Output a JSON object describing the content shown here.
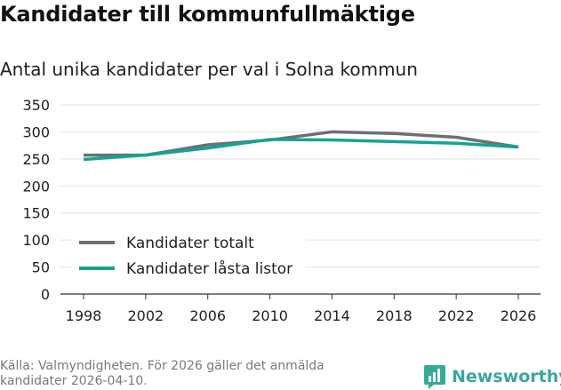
{
  "header": {
    "title": "Kandidater till kommunfullmäktige",
    "subtitle": "Antal unika kandidater per val i Solna kommun"
  },
  "footer": {
    "source_line1": "Källa: Valmyndigheten. För 2026 gäller det anmälda",
    "source_line2": "kandidater 2026-04-10.",
    "brand": "Newsworthy"
  },
  "colors": {
    "series_total": "#6e6e73",
    "series_locked": "#12a594",
    "brand": "#3aa89a",
    "grid": "#e3e3e3"
  },
  "chart_data": {
    "type": "line",
    "title": "Antal unika kandidater per val i Solna kommun",
    "xlabel": "",
    "ylabel": "",
    "x": [
      1998,
      2002,
      2006,
      2010,
      2014,
      2018,
      2022,
      2026
    ],
    "ylim": [
      0,
      350
    ],
    "yticks": [
      0,
      50,
      100,
      150,
      200,
      250,
      300,
      350
    ],
    "grid": true,
    "legend_position": "lower-left",
    "series": [
      {
        "name": "Kandidater totalt",
        "values": [
          257,
          257,
          276,
          285,
          300,
          297,
          290,
          272
        ]
      },
      {
        "name": "Kandidater låsta listor",
        "values": [
          249,
          257,
          270,
          286,
          285,
          282,
          279,
          272
        ]
      }
    ]
  }
}
